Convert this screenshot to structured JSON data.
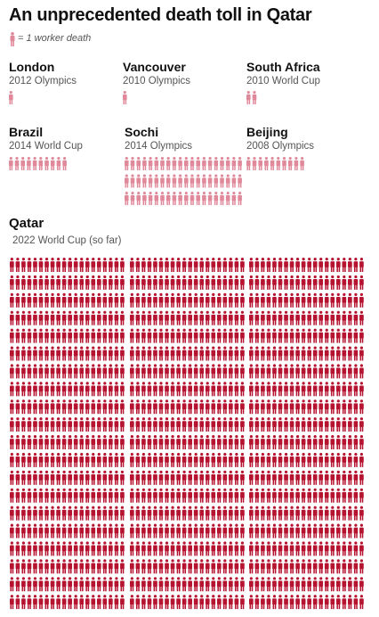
{
  "title": "An unprecedented death toll in Qatar",
  "legend": {
    "label": "= 1 worker death",
    "icon": "person-icon",
    "color": "#e0899a"
  },
  "colors": {
    "light_icon": "#e0899a",
    "qatar_icon": "#b5132f"
  },
  "chart_data": {
    "type": "pictogram",
    "unit": "1 worker death",
    "series": [
      {
        "name": "London",
        "subtitle": "2012 Olympics",
        "value": 1
      },
      {
        "name": "Vancouver",
        "subtitle": "2010 Olympics",
        "value": 1
      },
      {
        "name": "South Africa",
        "subtitle": "2010 World Cup",
        "value": 2
      },
      {
        "name": "Brazil",
        "subtitle": "2014 World Cup",
        "value": 10
      },
      {
        "name": "Sochi",
        "subtitle": "2014 Olympics",
        "value": 60
      },
      {
        "name": "Beijing",
        "subtitle": "2008 Olympics",
        "value": 10
      },
      {
        "name": "Qatar",
        "subtitle": "2022 World Cup (so far)",
        "value": 1200
      }
    ]
  }
}
